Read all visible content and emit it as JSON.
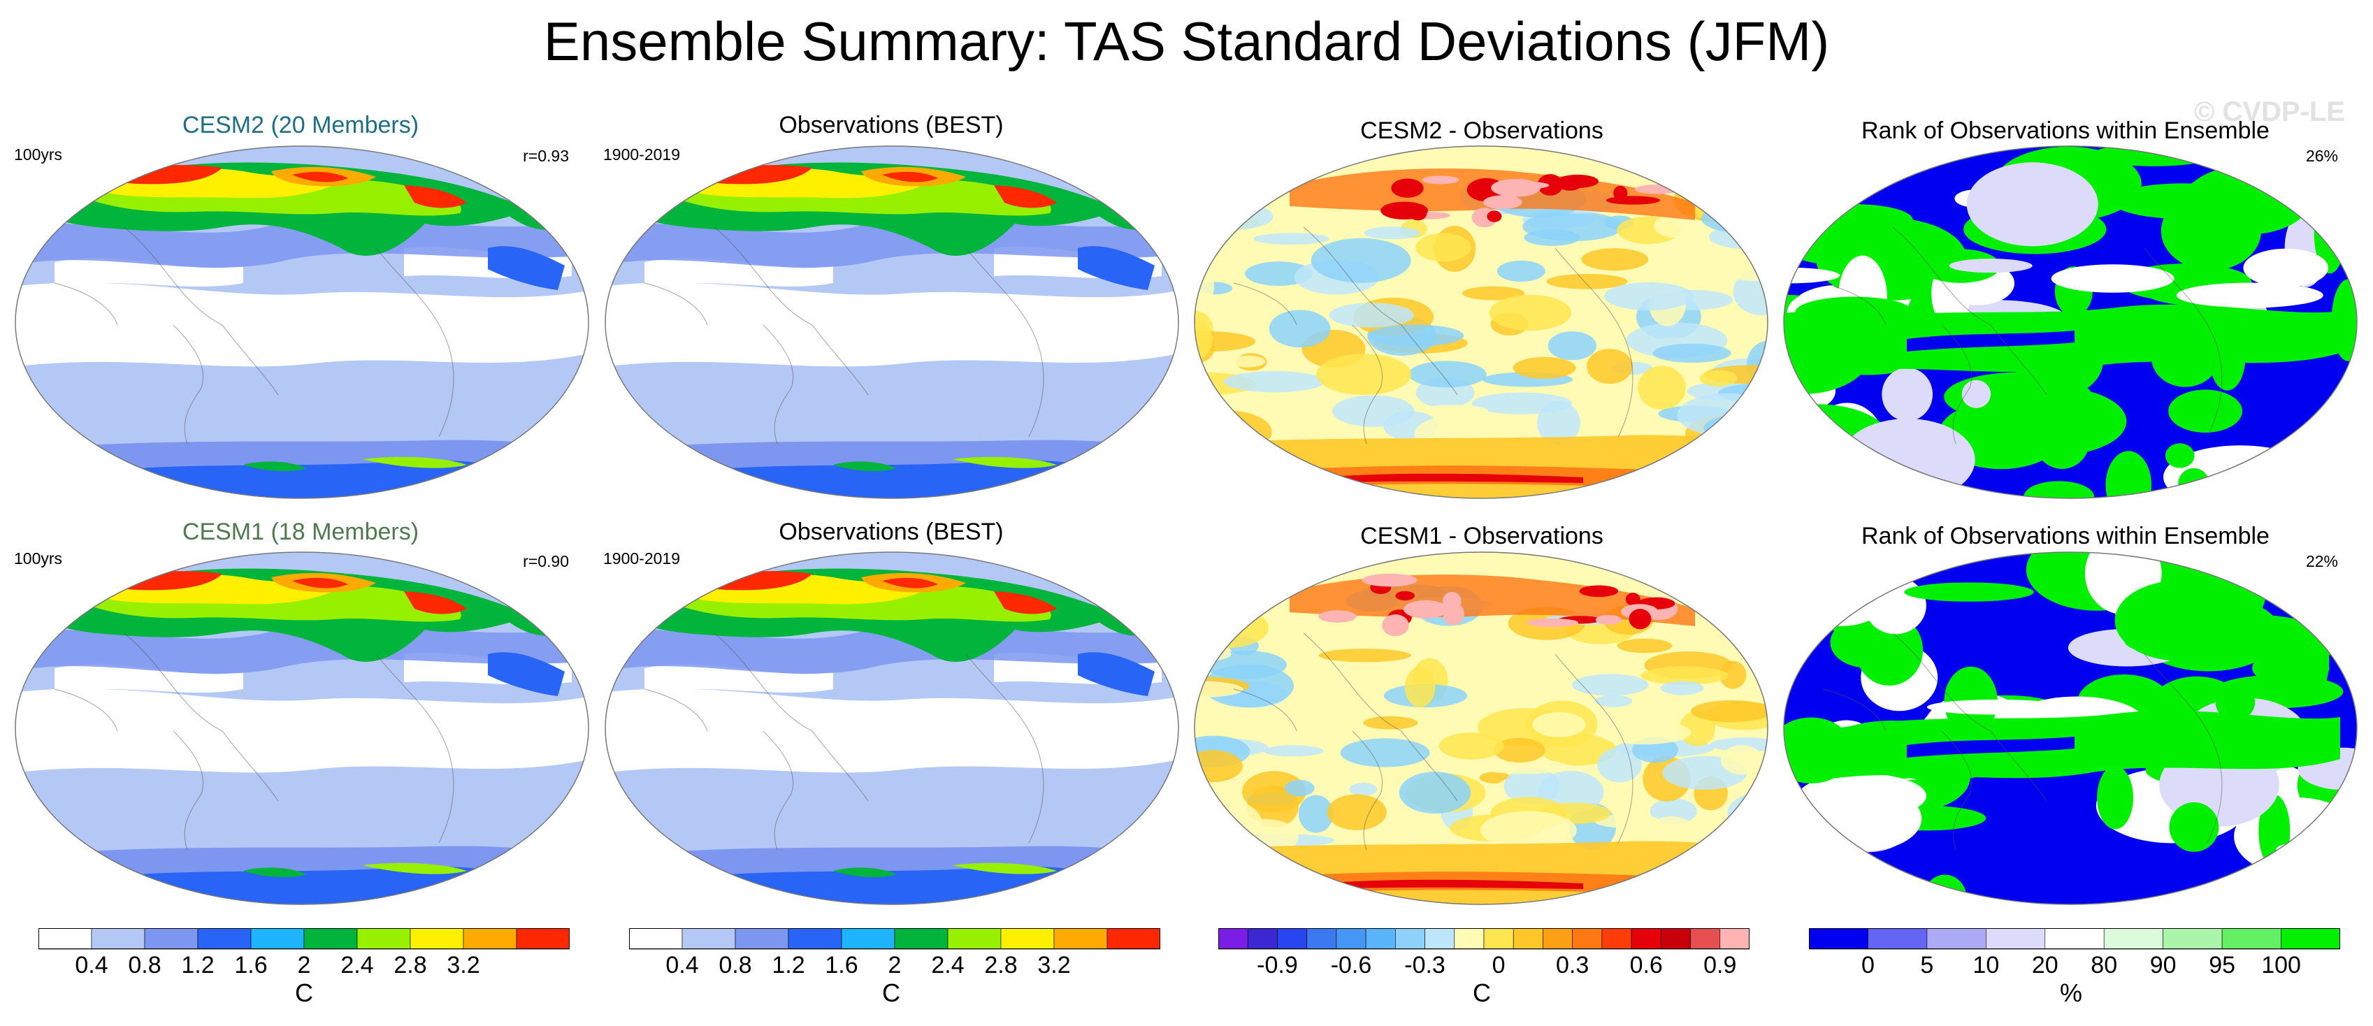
{
  "title": "Ensemble Summary: TAS Standard Deviations (JFM)",
  "watermark": "© CVDP-LE",
  "rows": [
    {
      "panels": [
        {
          "title": "CESM2 (20 Members)",
          "title_color": "#1f6e87",
          "left_label": "100yrs",
          "right_label": "r=0.93",
          "kind": "std"
        },
        {
          "title": "Observations (BEST)",
          "title_color": "#000000",
          "left_label": "1900-2019",
          "right_label": "",
          "kind": "std"
        },
        {
          "title": "CESM2 - Observations",
          "title_color": "#000000",
          "left_label": "",
          "right_label": "",
          "kind": "diff"
        },
        {
          "title": "Rank of Observations within Ensemble",
          "title_color": "#000000",
          "left_label": "",
          "right_label": "26%",
          "kind": "rank"
        }
      ]
    },
    {
      "panels": [
        {
          "title": "CESM1 (18 Members)",
          "title_color": "#4f7a4f",
          "left_label": "100yrs",
          "right_label": "r=0.90",
          "kind": "std"
        },
        {
          "title": "Observations (BEST)",
          "title_color": "#000000",
          "left_label": "1900-2019",
          "right_label": "",
          "kind": "std"
        },
        {
          "title": "CESM1 - Observations",
          "title_color": "#000000",
          "left_label": "",
          "right_label": "",
          "kind": "diff"
        },
        {
          "title": "Rank of Observations within Ensemble",
          "title_color": "#000000",
          "left_label": "",
          "right_label": "22%",
          "kind": "rank"
        }
      ]
    }
  ],
  "colorbars": [
    {
      "unit": "C",
      "colors": [
        "#ffffff",
        "#b4c8f5",
        "#7d96f0",
        "#2864f5",
        "#1eb4ff",
        "#00b43c",
        "#96f000",
        "#fff000",
        "#ffaa00",
        "#ff2800"
      ],
      "ticks": [
        "0.4",
        "0.8",
        "1.2",
        "1.6",
        "2",
        "2.4",
        "2.8",
        "3.2"
      ]
    },
    {
      "unit": "C",
      "colors": [
        "#ffffff",
        "#b4c8f5",
        "#7d96f0",
        "#2864f5",
        "#1eb4ff",
        "#00b43c",
        "#96f000",
        "#fff000",
        "#ffaa00",
        "#ff2800"
      ],
      "ticks": [
        "0.4",
        "0.8",
        "1.2",
        "1.6",
        "2",
        "2.4",
        "2.8",
        "3.2"
      ]
    },
    {
      "unit": "C",
      "colors": [
        "#7a1ee6",
        "#3c28d2",
        "#2846f0",
        "#3c78f0",
        "#4696f5",
        "#5ab4fa",
        "#8cd2fa",
        "#bee6fa",
        "#fffab4",
        "#ffe650",
        "#ffc828",
        "#ffa014",
        "#ff7814",
        "#ff3c0a",
        "#e6000a",
        "#c8000a",
        "#e65050",
        "#ffb4b4"
      ],
      "ticks": [
        "-0.9",
        "-0.6",
        "-0.3",
        "0",
        "0.3",
        "0.6",
        "0.9"
      ]
    },
    {
      "unit": "%",
      "colors": [
        "#0000f0",
        "#6464f5",
        "#aaaaf5",
        "#dcdcfa",
        "#ffffff",
        "#dcfadc",
        "#aaf5aa",
        "#64f064",
        "#00f000"
      ],
      "ticks": [
        "0",
        "5",
        "10",
        "20",
        "80",
        "90",
        "95",
        "100"
      ]
    }
  ],
  "palettes": {
    "std": [
      "#ffffff",
      "#b4c8f5",
      "#7d96f0",
      "#2864f5",
      "#00b43c",
      "#96f000",
      "#fff000",
      "#ffaa00",
      "#ff2800"
    ],
    "diff": [
      "#fffab4",
      "#ffe650",
      "#ffc828",
      "#bee6fa",
      "#8cd2fa",
      "#ff7814",
      "#e6000a",
      "#ffb4b4",
      "#3c78f0"
    ],
    "rank": [
      "#0000f0",
      "#00f000",
      "#ffffff",
      "#dcdcfa"
    ]
  }
}
